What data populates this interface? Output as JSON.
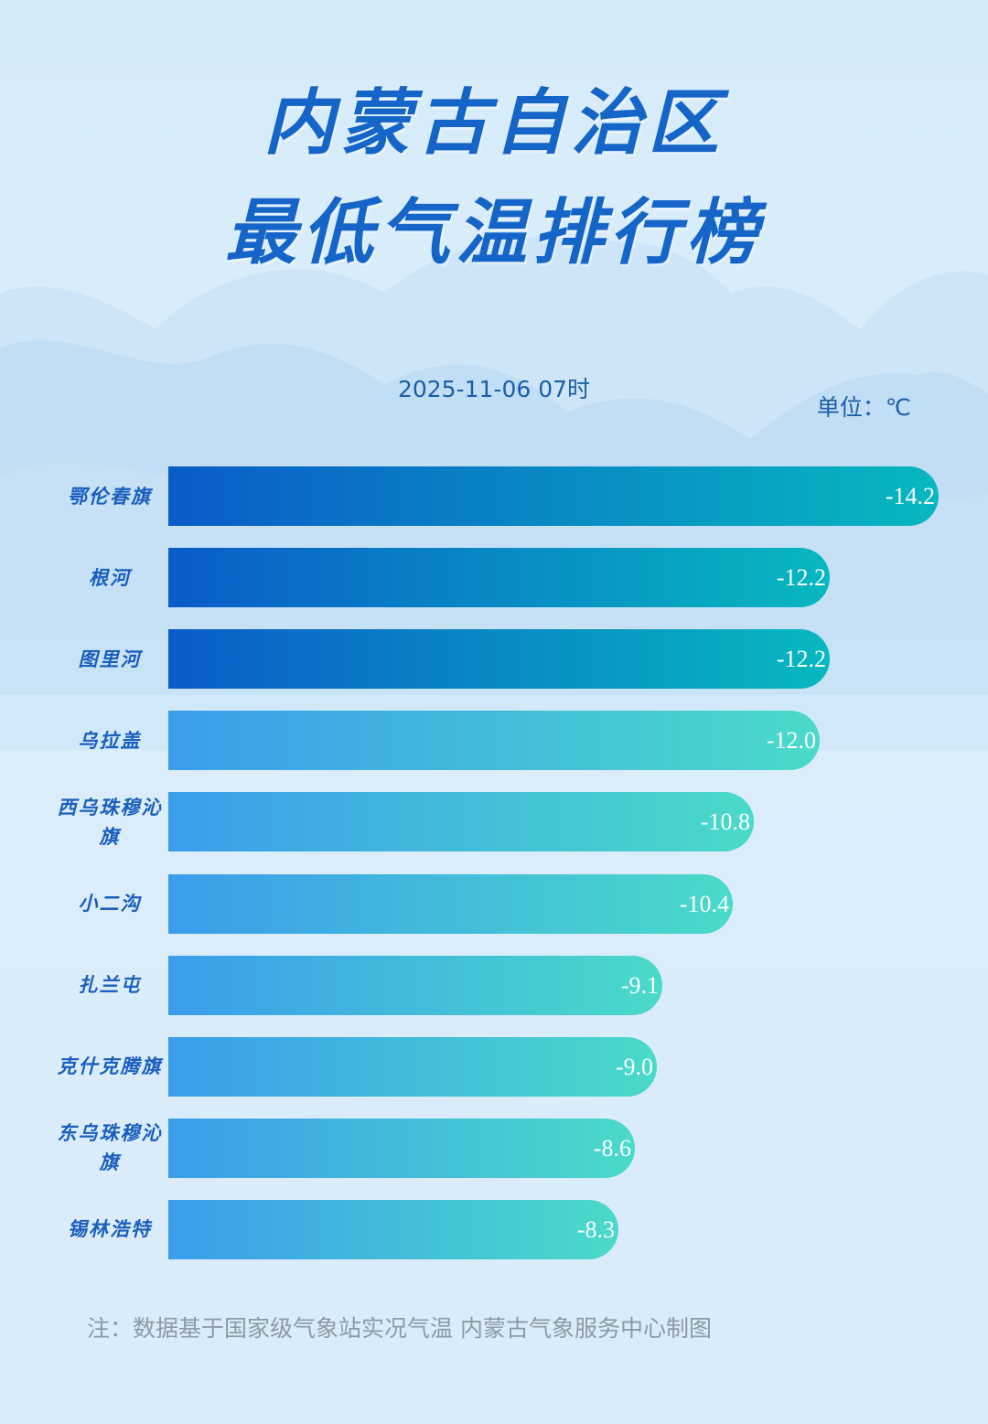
{
  "title_lines": [
    "内蒙古自治区",
    "最低气温排行榜"
  ],
  "subtitle": "2025-11-06 07时",
  "unit_label": "单位：℃",
  "note": "注：数据基于国家级气象站实况气温 内蒙古气象服务中心制图",
  "colors": {
    "title": "#1565c8",
    "background": "#d8ecfa",
    "bar_dark_start": "#0a5bc8",
    "bar_dark_end": "#07b8c0",
    "bar_light_start": "#3a9deb",
    "bar_light_end": "#4adac9"
  },
  "chart_data": {
    "type": "bar",
    "orientation": "horizontal",
    "categories": [
      "鄂伦春旗",
      "根河",
      "图里河",
      "乌拉盖",
      "西乌珠穆沁旗",
      "小二沟",
      "扎兰屯",
      "克什克腾旗",
      "东乌珠穆沁旗",
      "锡林浩特"
    ],
    "values": [
      -14.2,
      -12.2,
      -12.2,
      -12.0,
      -10.8,
      -10.4,
      -9.1,
      -9.0,
      -8.6,
      -8.3
    ],
    "value_labels": [
      "-14.2",
      "-12.2",
      "-12.2",
      "-12.0",
      "-10.8",
      "-10.4",
      "-9.1",
      "-9.0",
      "-8.6",
      "-8.3"
    ],
    "highlight_top": 3,
    "title": "内蒙古自治区最低气温排行榜",
    "xlabel": "",
    "ylabel": "",
    "unit": "℃",
    "grid": false
  }
}
